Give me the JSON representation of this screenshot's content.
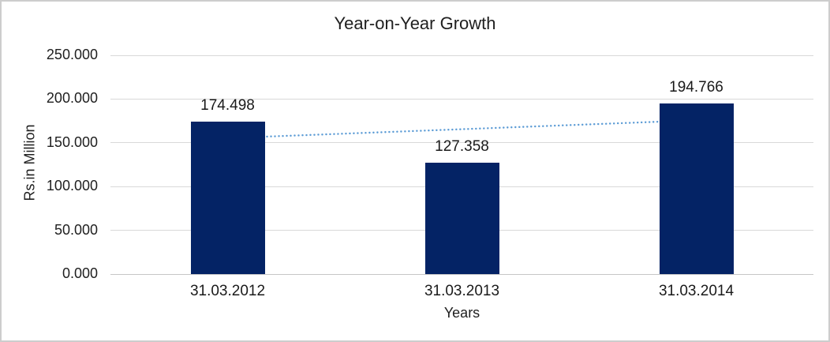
{
  "chart_data": {
    "type": "bar",
    "title": "Year-on-Year Growth",
    "xlabel": "Years",
    "ylabel": "Rs.in Million",
    "categories": [
      "31.03.2012",
      "31.03.2013",
      "31.03.2014"
    ],
    "values": [
      174.498,
      127.358,
      194.766
    ],
    "data_labels": [
      "174.498",
      "127.358",
      "194.766"
    ],
    "ylim": [
      0,
      250
    ],
    "yticks": [
      0,
      50,
      100,
      150,
      200,
      250
    ],
    "ytick_labels": [
      "0.000",
      "50.000",
      "100.000",
      "150.000",
      "200.000",
      "250.000"
    ],
    "grid": true,
    "legend": "none",
    "bar_color": "#042365",
    "trendline": {
      "type": "linear",
      "style": "dotted",
      "color": "#5b9bd5",
      "start_value": 155.4,
      "end_value": 175.7
    }
  }
}
